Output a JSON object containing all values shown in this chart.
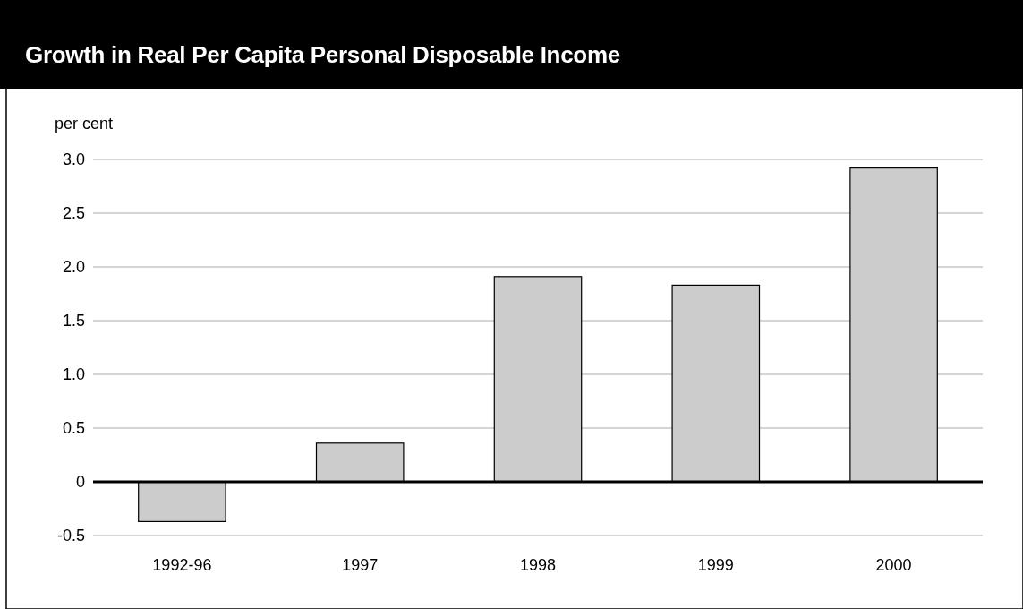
{
  "chart_data": {
    "type": "bar",
    "title": "Growth in Real Per Capita Personal Disposable Income",
    "ylabel": "per cent",
    "categories": [
      "1992-96",
      "1997",
      "1998",
      "1999",
      "2000"
    ],
    "values": [
      -0.37,
      0.36,
      1.91,
      1.83,
      2.92
    ],
    "color": "#cccccc",
    "ylim": [
      -0.5,
      3.0
    ],
    "yticks": [
      {
        "value": -0.5,
        "label": "-0.5"
      },
      {
        "value": 0,
        "label": "0"
      },
      {
        "value": 0.5,
        "label": "0.5"
      },
      {
        "value": 1,
        "label": "1.0"
      },
      {
        "value": 1.5,
        "label": "1.5"
      },
      {
        "value": 2,
        "label": "2.0"
      },
      {
        "value": 2.5,
        "label": "2.5"
      },
      {
        "value": 3,
        "label": "3.0"
      }
    ],
    "grid": "y"
  }
}
